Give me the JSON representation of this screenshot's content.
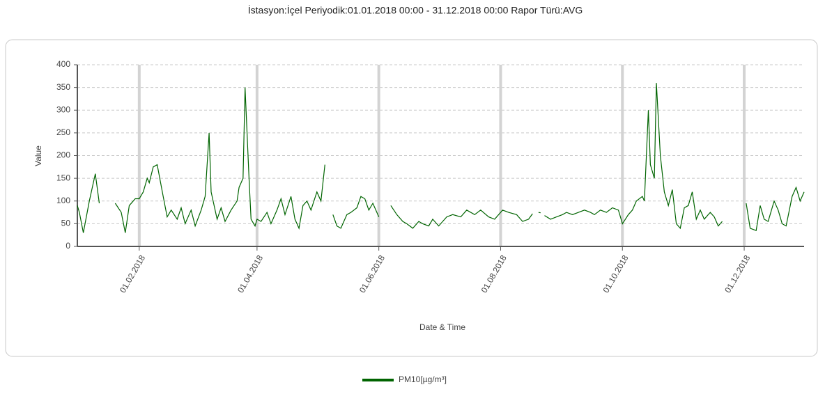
{
  "chart_data": {
    "type": "line",
    "title": "İstasyon:İçel Periyodik:01.01.2018 00:00 - 31.12.2018 00:00 Rapor Türü:AVG",
    "xlabel": "Date & Time",
    "ylabel": "Value",
    "xlim": [
      "01.01.2018",
      "31.12.2018"
    ],
    "xticks": [
      "01.02.2018",
      "01.04.2018",
      "01.06.2018",
      "01.08.2018",
      "01.10.2018",
      "01.12.2018"
    ],
    "ylim": [
      0,
      400
    ],
    "yticks": [
      0,
      50,
      100,
      150,
      200,
      250,
      300,
      350,
      400
    ],
    "grid": true,
    "x": [
      "01.01.2018",
      "02.01.2018",
      "04.01.2018",
      "07.01.2018",
      "10.01.2018",
      "12.01.2018",
      "16.01.2018",
      "20.01.2018",
      "23.01.2018",
      "25.01.2018",
      "27.01.2018",
      "30.01.2018",
      "01.02.2018",
      "03.02.2018",
      "05.02.2018",
      "06.02.2018",
      "08.02.2018",
      "10.02.2018",
      "13.02.2018",
      "15.02.2018",
      "17.02.2018",
      "20.02.2018",
      "22.02.2018",
      "24.02.2018",
      "27.02.2018",
      "01.03.2018",
      "04.03.2018",
      "06.03.2018",
      "08.03.2018",
      "09.03.2018",
      "12.03.2018",
      "14.03.2018",
      "16.03.2018",
      "19.03.2018",
      "22.03.2018",
      "23.03.2018",
      "25.03.2018",
      "26.03.2018",
      "28.03.2018",
      "29.03.2018",
      "31.03.2018",
      "01.04.2018",
      "03.04.2018",
      "06.04.2018",
      "08.04.2018",
      "11.04.2018",
      "13.04.2018",
      "15.04.2018",
      "18.04.2018",
      "20.04.2018",
      "22.04.2018",
      "24.04.2018",
      "26.04.2018",
      "28.04.2018",
      "01.05.2018",
      "03.05.2018",
      "05.05.2018",
      "07.05.2018",
      "09.05.2018",
      "11.05.2018",
      "13.05.2018",
      "16.05.2018",
      "18.05.2018",
      "21.05.2018",
      "23.05.2018",
      "25.05.2018",
      "27.05.2018",
      "29.05.2018",
      "01.06.2018",
      "04.06.2018",
      "07.06.2018",
      "10.06.2018",
      "13.06.2018",
      "15.06.2018",
      "18.06.2018",
      "21.06.2018",
      "23.06.2018",
      "26.06.2018",
      "28.06.2018",
      "01.07.2018",
      "05.07.2018",
      "08.07.2018",
      "12.07.2018",
      "15.07.2018",
      "19.07.2018",
      "22.07.2018",
      "26.07.2018",
      "29.07.2018",
      "02.08.2018",
      "05.08.2018",
      "09.08.2018",
      "12.08.2018",
      "15.08.2018",
      "17.08.2018",
      "19.08.2018",
      "20.08.2018",
      "21.08.2018",
      "22.08.2018",
      "23.08.2018",
      "26.08.2018",
      "29.08.2018",
      "01.09.2018",
      "03.09.2018",
      "06.09.2018",
      "09.09.2018",
      "12.09.2018",
      "15.09.2018",
      "17.09.2018",
      "20.09.2018",
      "23.09.2018",
      "26.09.2018",
      "29.09.2018",
      "01.10.2018",
      "04.10.2018",
      "06.10.2018",
      "08.10.2018",
      "11.10.2018",
      "12.10.2018",
      "14.10.2018",
      "15.10.2018",
      "17.10.2018",
      "18.10.2018",
      "20.10.2018",
      "22.10.2018",
      "24.10.2018",
      "26.10.2018",
      "28.10.2018",
      "30.10.2018",
      "01.11.2018",
      "03.11.2018",
      "05.11.2018",
      "07.11.2018",
      "09.11.2018",
      "11.11.2018",
      "14.11.2018",
      "16.11.2018",
      "18.11.2018",
      "20.11.2018",
      "26.11.2018",
      "02.12.2018",
      "04.12.2018",
      "07.12.2018",
      "09.12.2018",
      "11.12.2018",
      "13.12.2018",
      "16.12.2018",
      "18.12.2018",
      "20.12.2018",
      "22.12.2018",
      "25.12.2018",
      "27.12.2018",
      "29.12.2018",
      "31.12.2018"
    ],
    "series": [
      {
        "name": "PM10[µg/m³]",
        "color": "#006400",
        "values": [
          90,
          75,
          30,
          100,
          160,
          95,
          null,
          95,
          75,
          30,
          90,
          105,
          105,
          120,
          150,
          140,
          175,
          180,
          110,
          65,
          80,
          60,
          85,
          50,
          80,
          45,
          80,
          110,
          250,
          120,
          60,
          85,
          55,
          80,
          100,
          130,
          150,
          350,
          150,
          60,
          45,
          60,
          55,
          75,
          50,
          80,
          105,
          70,
          110,
          60,
          40,
          90,
          100,
          80,
          120,
          100,
          180,
          null,
          70,
          45,
          40,
          70,
          75,
          85,
          110,
          105,
          80,
          95,
          65,
          null,
          90,
          70,
          55,
          50,
          40,
          55,
          50,
          45,
          60,
          45,
          65,
          70,
          65,
          80,
          70,
          80,
          65,
          60,
          80,
          75,
          70,
          55,
          60,
          72,
          null,
          75,
          74,
          null,
          68,
          60,
          65,
          70,
          75,
          70,
          75,
          80,
          75,
          70,
          80,
          75,
          85,
          80,
          50,
          70,
          80,
          100,
          110,
          100,
          300,
          180,
          150,
          360,
          200,
          120,
          90,
          125,
          50,
          40,
          85,
          90,
          120,
          60,
          80,
          60,
          75,
          65,
          45,
          55,
          null,
          95,
          40,
          35,
          90,
          60,
          55,
          100,
          80,
          50,
          45,
          110,
          130,
          100,
          120
        ]
      }
    ]
  }
}
